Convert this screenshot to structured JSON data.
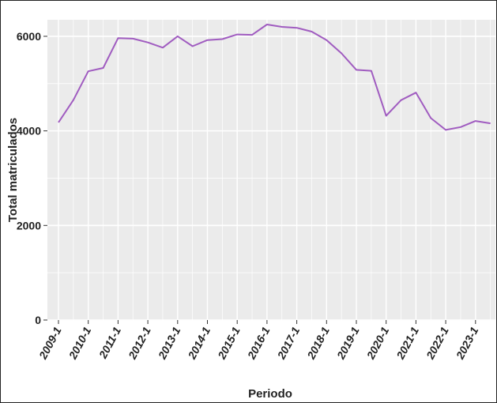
{
  "chart_data": {
    "type": "line",
    "title": "",
    "xlabel": "Periodo",
    "ylabel": "Total matriculados",
    "ylim": [
      0,
      6350
    ],
    "grid": true,
    "legend": "none",
    "line_color": "#a05cc0",
    "panel_color": "#ebebeb",
    "yticks": [
      0,
      2000,
      4000,
      6000
    ],
    "xtick_labels": [
      "2009-1",
      "2010-1",
      "2011-1",
      "2012-1",
      "2013-1",
      "2014-1",
      "2015-1",
      "2016-1",
      "2017-1",
      "2018-1",
      "2019-1",
      "2020-1",
      "2021-1",
      "2022-1",
      "2023-1"
    ],
    "x": [
      "2009-1",
      "2009-2",
      "2010-1",
      "2010-2",
      "2011-1",
      "2011-2",
      "2012-1",
      "2012-2",
      "2013-1",
      "2013-2",
      "2014-1",
      "2014-2",
      "2015-1",
      "2015-2",
      "2016-1",
      "2016-2",
      "2017-1",
      "2017-2",
      "2018-1",
      "2018-2",
      "2019-1",
      "2019-2",
      "2020-1",
      "2020-2",
      "2021-1",
      "2021-2",
      "2022-1",
      "2022-2",
      "2023-1",
      "2023-2"
    ],
    "series": [
      {
        "values": [
          4180,
          4650,
          5260,
          5330,
          5960,
          5950,
          5870,
          5760,
          6000,
          5790,
          5920,
          5940,
          6040,
          6030,
          6250,
          6200,
          6180,
          6100,
          5920,
          5640,
          5290,
          5270,
          4320,
          4650,
          4810,
          4270,
          4020,
          4080,
          4210,
          4160
        ]
      }
    ]
  }
}
